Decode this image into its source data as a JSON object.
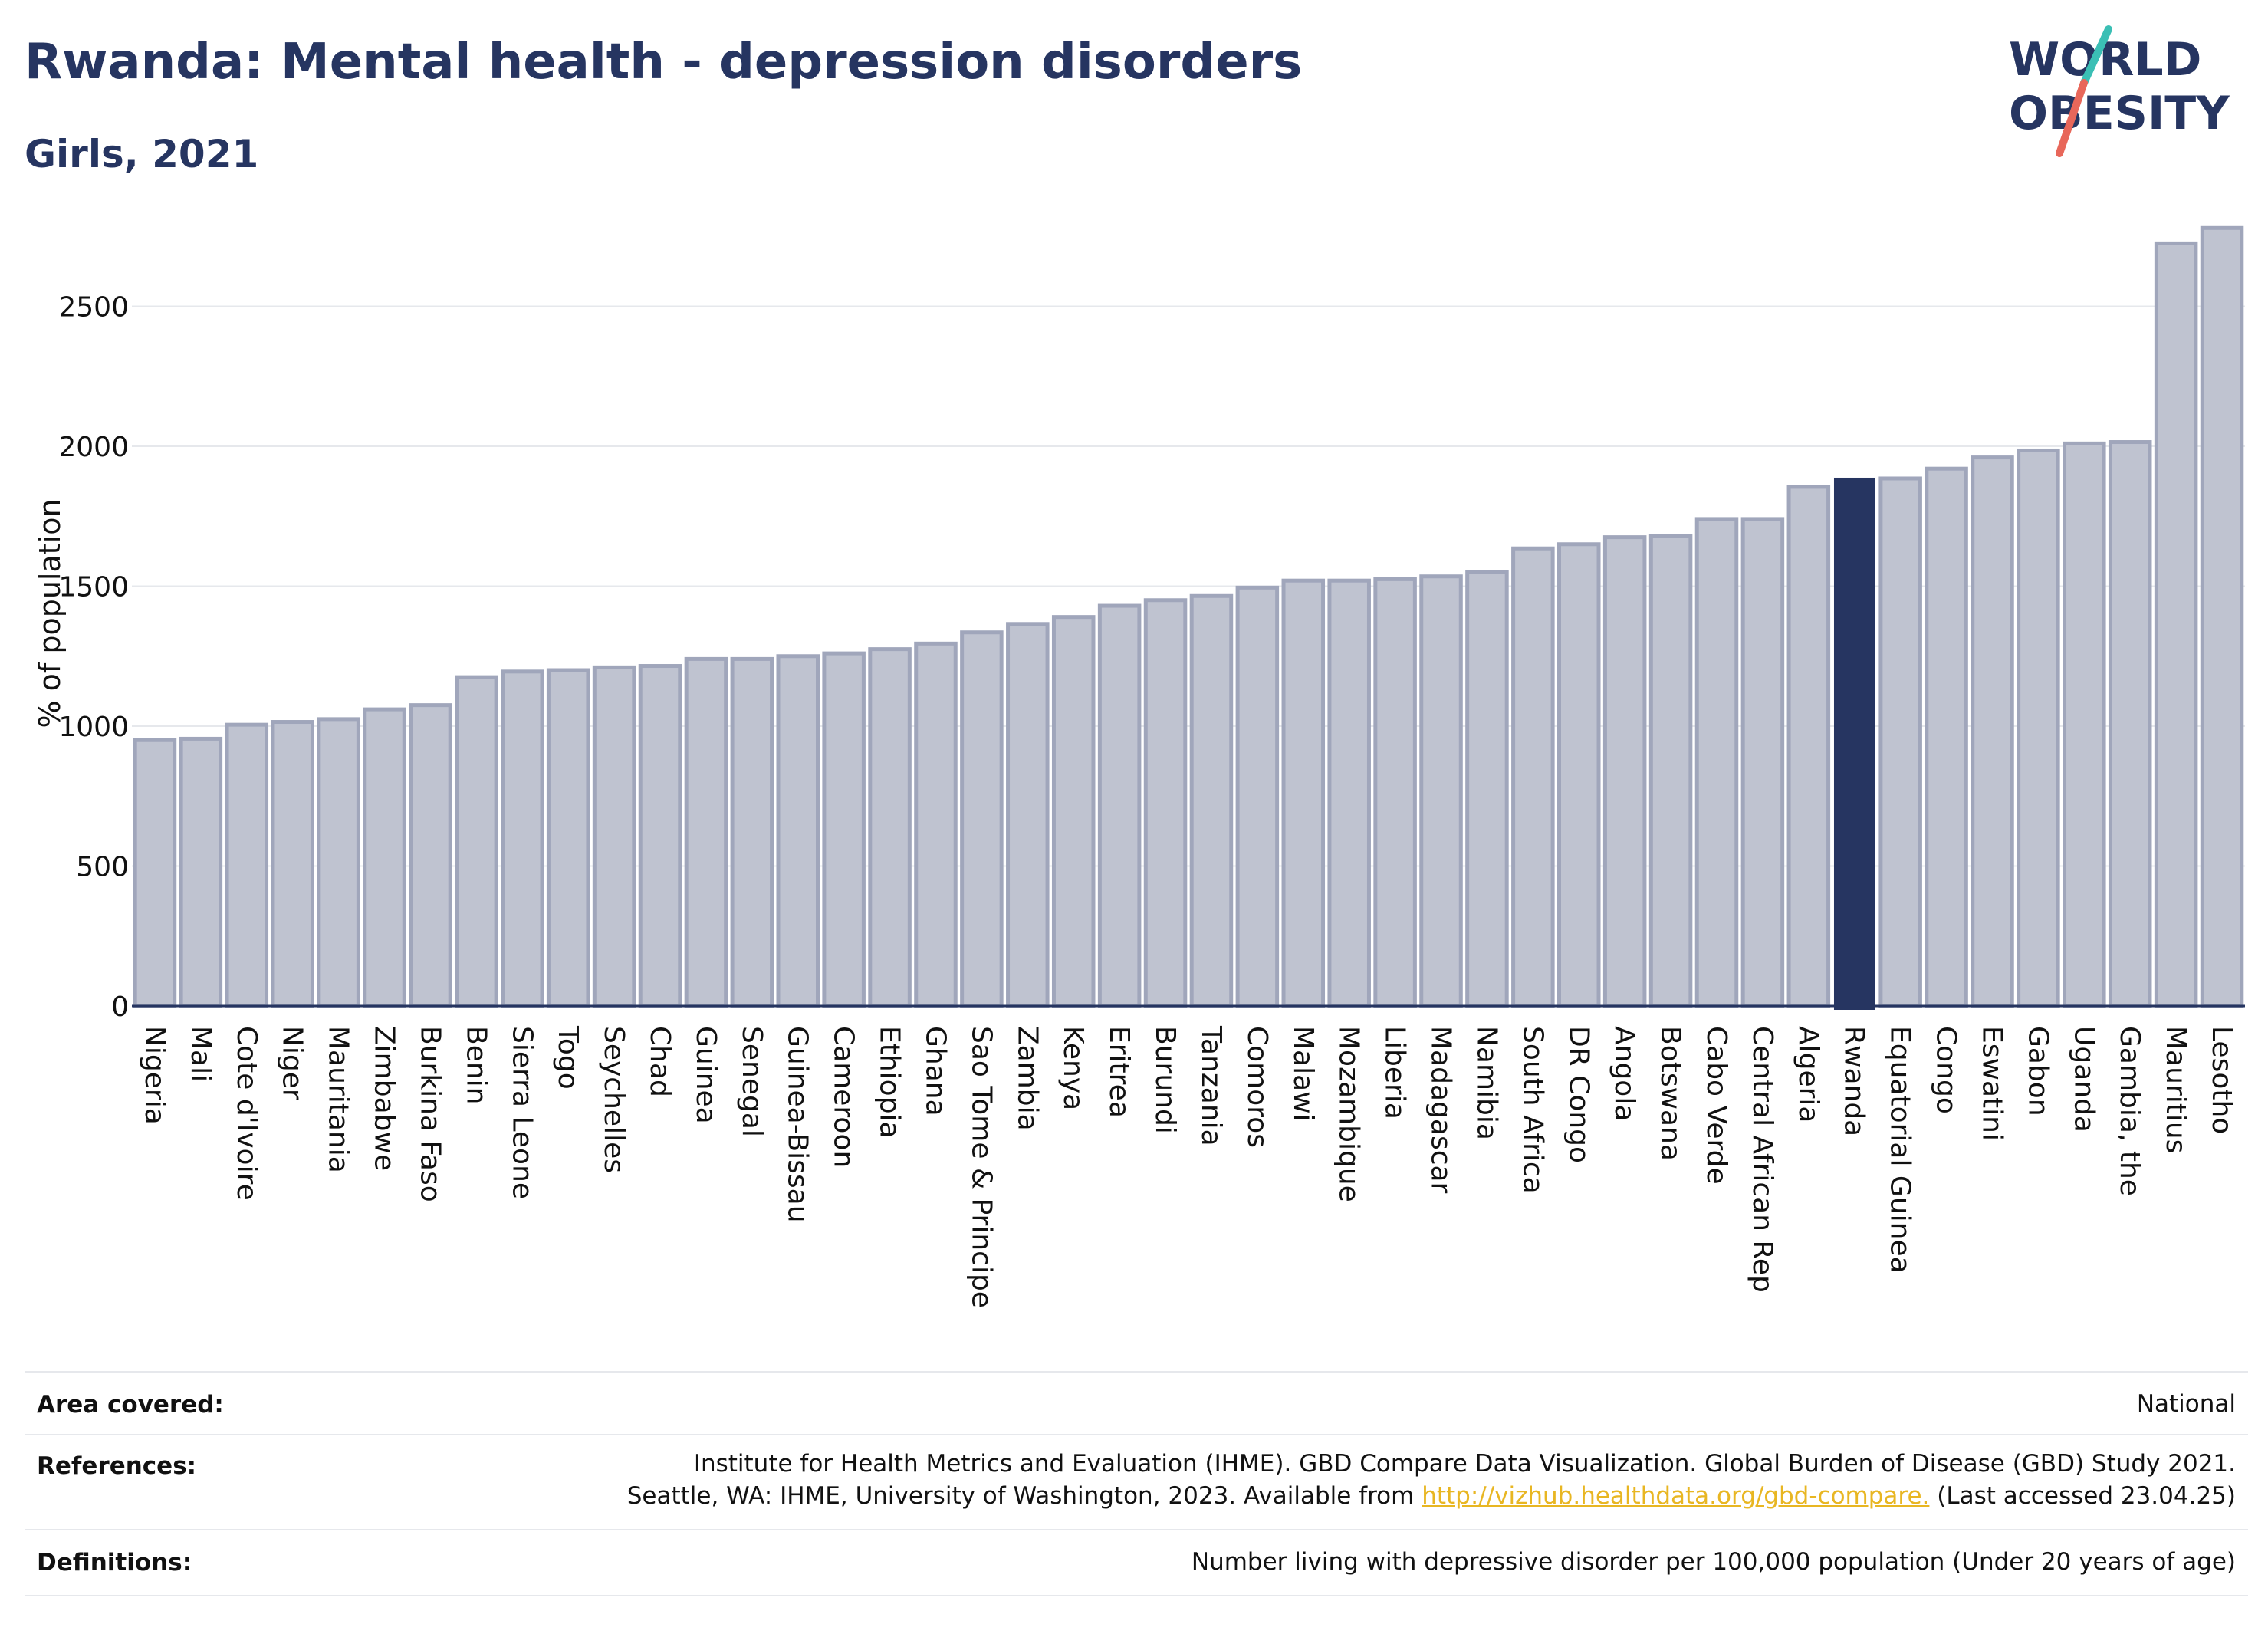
{
  "header": {
    "title": "Rwanda: Mental health - depression disorders",
    "subtitle": "Girls, 2021"
  },
  "logo": {
    "line1": "WORLD",
    "line2": "OBESITY"
  },
  "colors": {
    "highlight": "#263561",
    "bar": "#bfc3d0",
    "bar_border": "#a0a6bb",
    "link": "#e8b622",
    "logo_slash_teal": "#3bbfb5",
    "logo_slash_red": "#e8675a"
  },
  "chart_data": {
    "type": "bar",
    "ylabel": "% of population",
    "ylim": [
      0,
      2800
    ],
    "yticks": [
      0,
      500,
      1000,
      1500,
      2000,
      2500
    ],
    "grid": true,
    "highlight": "Rwanda",
    "categories": [
      "Nigeria",
      "Mali",
      "Cote d'Ivoire",
      "Niger",
      "Mauritania",
      "Zimbabwe",
      "Burkina Faso",
      "Benin",
      "Sierra Leone",
      "Togo",
      "Seychelles",
      "Chad",
      "Guinea",
      "Senegal",
      "Guinea-Bissau",
      "Cameroon",
      "Ethiopia",
      "Ghana",
      "Sao Tome & Principe",
      "Zambia",
      "Kenya",
      "Eritrea",
      "Burundi",
      "Tanzania",
      "Comoros",
      "Malawi",
      "Mozambique",
      "Liberia",
      "Madagascar",
      "Namibia",
      "South Africa",
      "DR Congo",
      "Angola",
      "Botswana",
      "Cabo Verde",
      "Central African Rep",
      "Algeria",
      "Rwanda",
      "Equatorial Guinea",
      "Congo",
      "Eswatini",
      "Gabon",
      "Uganda",
      "Gambia, the",
      "Mauritius",
      "Lesotho"
    ],
    "values": [
      950,
      955,
      1005,
      1015,
      1025,
      1060,
      1075,
      1175,
      1195,
      1200,
      1210,
      1215,
      1240,
      1240,
      1250,
      1260,
      1275,
      1295,
      1335,
      1365,
      1390,
      1430,
      1450,
      1465,
      1495,
      1520,
      1520,
      1525,
      1535,
      1550,
      1635,
      1650,
      1675,
      1680,
      1740,
      1740,
      1855,
      1885,
      1885,
      1920,
      1960,
      1985,
      2010,
      2015,
      2725,
      2780
    ]
  },
  "footer": {
    "area_label": "Area covered:",
    "area_value": "National",
    "references_label": "References:",
    "references_line1": "Institute for Health Metrics and Evaluation (IHME). GBD Compare Data Visualization. Global Burden of Disease (GBD) Study 2021.",
    "references_line2_pre": "Seattle, WA: IHME, University of Washington, 2023. Available from ",
    "references_link": "http://vizhub.healthdata.org/gbd-compare.",
    "references_line2_post": " (Last accessed 23.04.25)",
    "definitions_label": "Definitions:",
    "definitions_value": "Number living with depressive disorder per 100,000 population (Under 20 years of age)"
  }
}
